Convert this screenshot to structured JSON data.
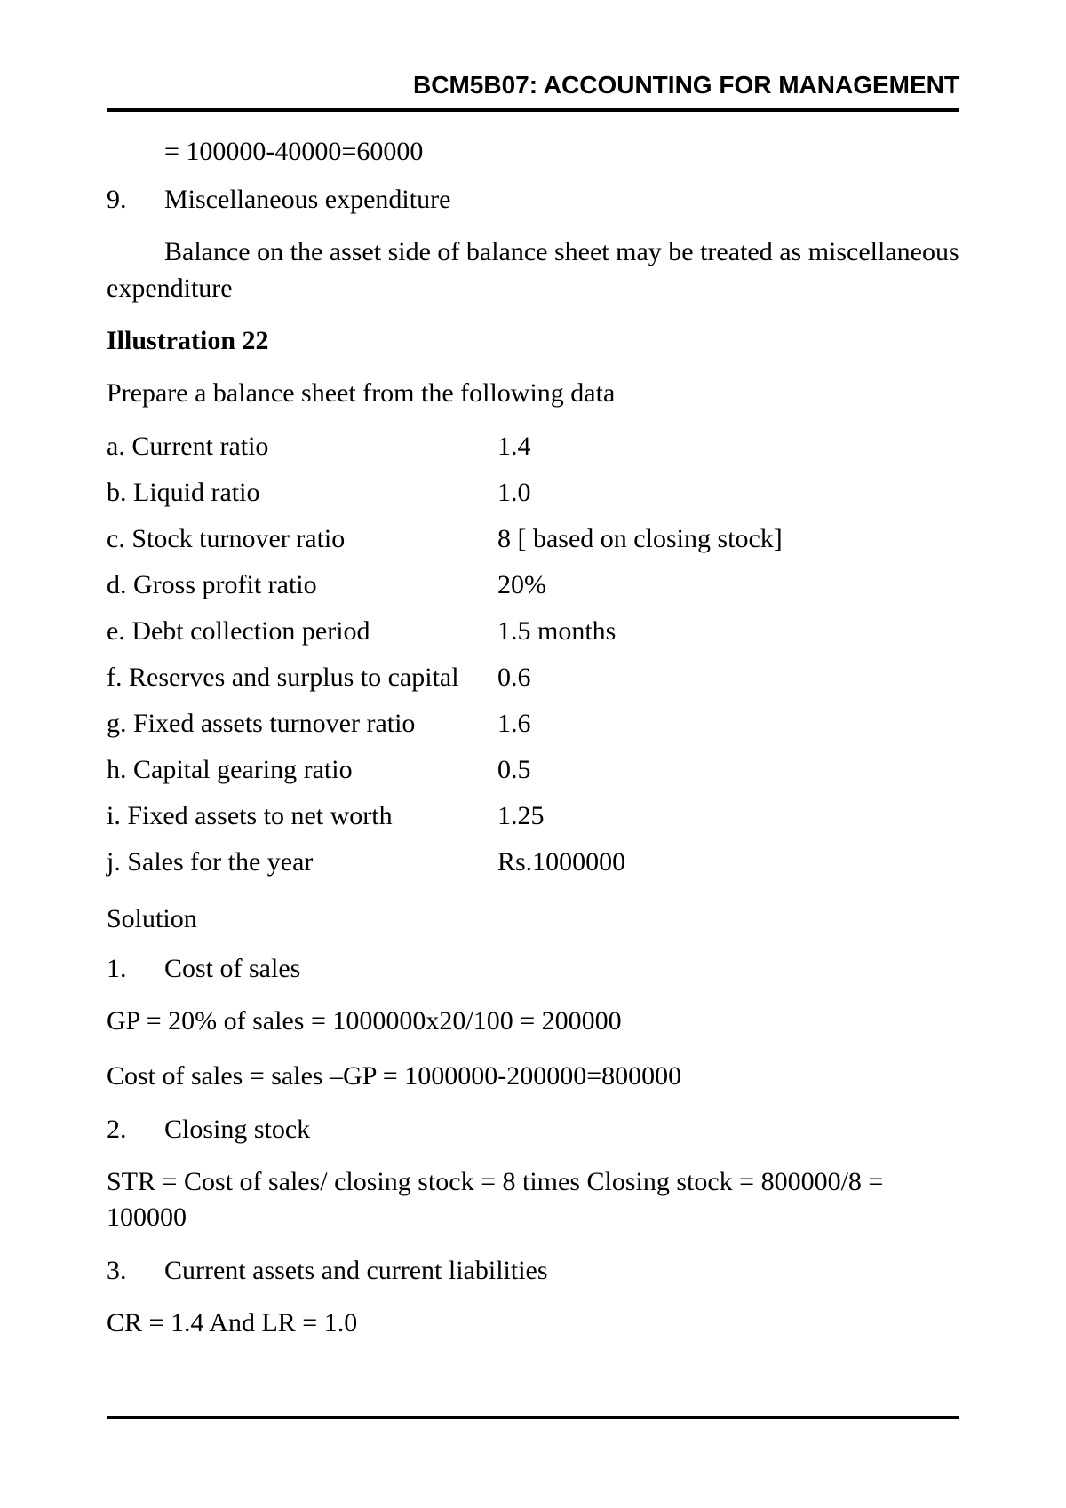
{
  "header": "BCM5B07: ACCOUNTING FOR MANAGEMENT",
  "calc_continuation": "= 100000-40000=60000",
  "item9": {
    "num": "9.",
    "title": "Miscellaneous expenditure",
    "body": "Balance on the asset side of balance sheet may be treated as miscellaneous expenditure"
  },
  "illustration_title": "Illustration 22",
  "illustration_prompt": "Prepare a balance sheet from the following data",
  "data_rows": [
    {
      "label": "a. Current ratio",
      "value": "1.4"
    },
    {
      "label": "b. Liquid ratio",
      "value": "1.0"
    },
    {
      "label": "c. Stock turnover ratio",
      "value": "8 [ based on closing stock]"
    },
    {
      "label": "d. Gross profit ratio",
      "value": "20%"
    },
    {
      "label": "e. Debt collection period",
      "value": "1.5 months"
    },
    {
      "label": "f. Reserves and surplus to capital",
      "value": "0.6"
    },
    {
      "label": "g. Fixed assets turnover ratio",
      "value": "1.6"
    },
    {
      "label": "h. Capital gearing ratio",
      "value": "0.5"
    },
    {
      "label": "i. Fixed assets to net worth",
      "value": "1.25"
    },
    {
      "label": "j. Sales for the year",
      "value": "Rs.1000000"
    }
  ],
  "solution_heading": "Solution",
  "solution_items": [
    {
      "num": "1.",
      "title": "Cost of sales"
    },
    {
      "num": "2.",
      "title": "Closing stock"
    },
    {
      "num": "3.",
      "title": "Current assets and current liabilities"
    }
  ],
  "solution_lines": {
    "gp": "GP = 20% of sales = 1000000x20/100 = 200000",
    "cost_of_sales": "Cost of sales = sales –GP = 1000000-200000=800000",
    "str": "STR = Cost of sales/ closing stock = 8 times Closing stock = 800000/8 = 100000",
    "cr_lr": "CR = 1.4 And LR = 1.0"
  }
}
